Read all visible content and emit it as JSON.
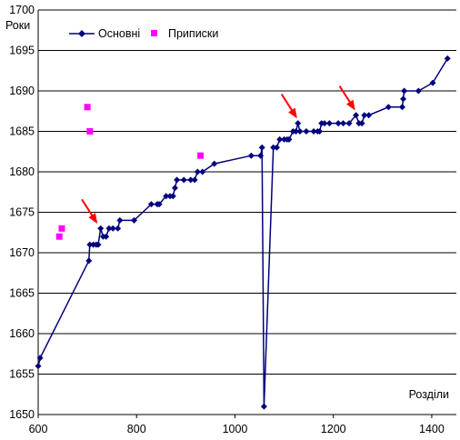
{
  "chart_data": {
    "type": "line",
    "xlabel": "Розділи",
    "ylabel": "Роки",
    "xlim": [
      600,
      1450
    ],
    "ylim": [
      1650,
      1700
    ],
    "x_ticks": [
      "600",
      "800",
      "1000",
      "1200",
      "1400"
    ],
    "y_ticks": [
      "1650",
      "1655",
      "1660",
      "1665",
      "1670",
      "1675",
      "1680",
      "1685",
      "1690",
      "1695",
      "1700"
    ],
    "grid": "horizontal",
    "legend_position": "top-left",
    "series": [
      {
        "name": "Основні",
        "color": "#000080",
        "marker": "diamond",
        "connect": true,
        "points": [
          [
            600,
            1656
          ],
          [
            604,
            1657
          ],
          [
            703,
            1669
          ],
          [
            705,
            1671
          ],
          [
            712,
            1671
          ],
          [
            718,
            1671
          ],
          [
            722,
            1671
          ],
          [
            727,
            1673
          ],
          [
            732,
            1672
          ],
          [
            738,
            1672
          ],
          [
            744,
            1673
          ],
          [
            752,
            1673
          ],
          [
            762,
            1673
          ],
          [
            766,
            1674
          ],
          [
            795,
            1674
          ],
          [
            830,
            1676
          ],
          [
            842,
            1676
          ],
          [
            846,
            1676
          ],
          [
            860,
            1677
          ],
          [
            868,
            1677
          ],
          [
            874,
            1677
          ],
          [
            878,
            1678
          ],
          [
            882,
            1679
          ],
          [
            896,
            1679
          ],
          [
            910,
            1679
          ],
          [
            918,
            1679
          ],
          [
            924,
            1680
          ],
          [
            934,
            1680
          ],
          [
            958,
            1681
          ],
          [
            1033,
            1682
          ],
          [
            1052,
            1682
          ],
          [
            1055,
            1683
          ],
          [
            1059,
            1651
          ],
          [
            1078,
            1683
          ],
          [
            1085,
            1683
          ],
          [
            1091,
            1684
          ],
          [
            1100,
            1684
          ],
          [
            1106,
            1684
          ],
          [
            1110,
            1684
          ],
          [
            1118,
            1685
          ],
          [
            1124,
            1685
          ],
          [
            1128,
            1686
          ],
          [
            1132,
            1685
          ],
          [
            1145,
            1685
          ],
          [
            1160,
            1685
          ],
          [
            1168,
            1685
          ],
          [
            1172,
            1685
          ],
          [
            1176,
            1686
          ],
          [
            1182,
            1686
          ],
          [
            1192,
            1686
          ],
          [
            1210,
            1686
          ],
          [
            1220,
            1686
          ],
          [
            1232,
            1686
          ],
          [
            1246,
            1687
          ],
          [
            1252,
            1686
          ],
          [
            1258,
            1686
          ],
          [
            1263,
            1687
          ],
          [
            1272,
            1687
          ],
          [
            1312,
            1688
          ],
          [
            1340,
            1688
          ],
          [
            1342,
            1689
          ],
          [
            1344,
            1690
          ],
          [
            1373,
            1690
          ],
          [
            1402,
            1691
          ],
          [
            1432,
            1694
          ]
        ]
      },
      {
        "name": "Приписки",
        "color": "#ff00ff",
        "marker": "square",
        "connect": false,
        "points": [
          [
            643,
            1672
          ],
          [
            648,
            1673
          ],
          [
            700,
            1688
          ],
          [
            705,
            1685
          ],
          [
            930,
            1682
          ]
        ]
      }
    ],
    "annotations": [
      {
        "type": "arrow",
        "color": "#ff0000",
        "points_to": [
          722,
          1673
        ]
      },
      {
        "type": "arrow",
        "color": "#ff0000",
        "points_to": [
          1128,
          1686
        ]
      },
      {
        "type": "arrow",
        "color": "#ff0000",
        "points_to": [
          1246,
          1687
        ]
      }
    ]
  }
}
